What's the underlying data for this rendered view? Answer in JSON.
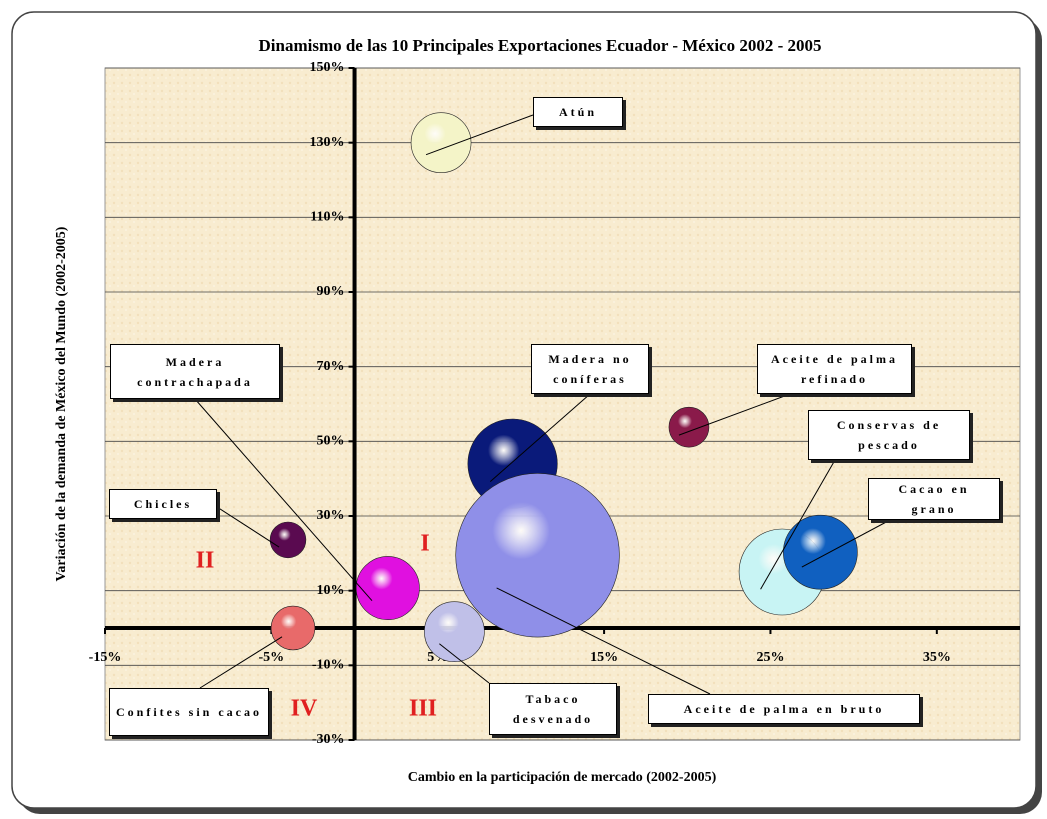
{
  "chart_data": {
    "type": "bubble",
    "title": "Dinamismo de las 10 Principales Exportaciones Ecuador - México 2002 - 2005",
    "xlabel": "Cambio en la participación de mercado (2002-2005)",
    "ylabel": "Variación de la demanda de México del Mundo (2002-2005)",
    "categories": [
      "Atún",
      "Madera no coníferas",
      "Aceite de palma en bruto",
      "Aceite de palma refinado",
      "Conservas de pescado",
      "Cacao en grano",
      "Chicles",
      "Madera contrachapada",
      "Confites sin cacao",
      "Tabaco desvenado"
    ],
    "x": [
      5.2,
      9.5,
      11,
      20.1,
      25.7,
      28,
      -4,
      2,
      -3.7,
      6
    ],
    "values": [
      130,
      44,
      19.5,
      53.8,
      15,
      20.3,
      23.6,
      10.7,
      0,
      -1
    ],
    "sizes": [
      9,
      20,
      67,
      4,
      18.5,
      13.7,
      3.2,
      10,
      4.8,
      9
    ],
    "colors": [
      "#f4f4c8",
      "#0a1a7a",
      "#8f8fe8",
      "#8a1a4a",
      "#c8f4f4",
      "#1060c0",
      "#5a0a50",
      "#e010e0",
      "#e86a6a",
      "#c0c0e8"
    ],
    "xlim": [
      -15,
      40
    ],
    "ylim": [
      -30,
      150
    ],
    "xticks": [
      {
        "value": -15,
        "label": "-15%"
      },
      {
        "value": -5,
        "label": "-5%"
      },
      {
        "value": 5,
        "label": "5%"
      },
      {
        "value": 15,
        "label": "15%"
      },
      {
        "value": 25,
        "label": "25%"
      },
      {
        "value": 35,
        "label": "35%"
      }
    ],
    "yticks": [
      {
        "value": -30,
        "label": "-30%"
      },
      {
        "value": -10,
        "label": "-10%"
      },
      {
        "value": 10,
        "label": "10%"
      },
      {
        "value": 30,
        "label": "30%"
      },
      {
        "value": 50,
        "label": "50%"
      },
      {
        "value": 70,
        "label": "70%"
      },
      {
        "value": 90,
        "label": "90%"
      },
      {
        "value": 110,
        "label": "110%"
      },
      {
        "value": 130,
        "label": "130%"
      },
      {
        "value": 150,
        "label": "150%"
      }
    ],
    "grid": true,
    "annotations": [
      "I",
      "II",
      "III",
      "IV"
    ]
  }
}
